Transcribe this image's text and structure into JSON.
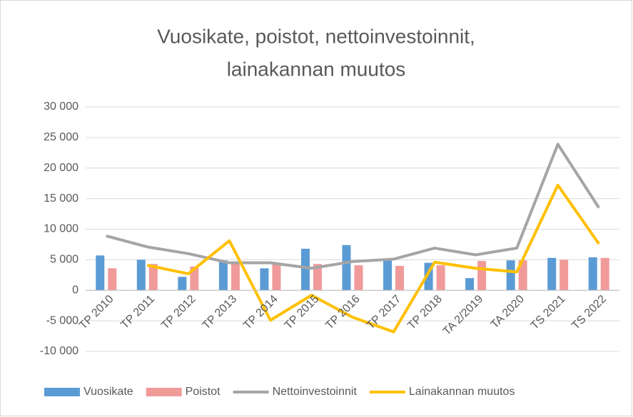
{
  "chart_data": {
    "type": "combo",
    "title": [
      "Vuosikate, poistot, nettoinvestoinnit,",
      "lainakannan muutos"
    ],
    "categories": [
      "TP 2010",
      "TP 2011",
      "TP 2012",
      "TP 2013",
      "TP 2014",
      "TP 2015",
      "TP 2016",
      "TP 2017",
      "TP 2018",
      "TA 2/2019",
      "TA 2020",
      "TS 2021",
      "TS 2022"
    ],
    "series": [
      {
        "name": "Vuosikate",
        "type": "bar",
        "color": "#5b9bd5",
        "values": [
          5700,
          5000,
          2200,
          4900,
          3600,
          6800,
          7400,
          4900,
          4500,
          2000,
          4900,
          5300,
          5400
        ]
      },
      {
        "name": "Poistot",
        "type": "bar",
        "color": "#f19a9a",
        "values": [
          3600,
          4300,
          3900,
          4300,
          4500,
          4300,
          4100,
          4000,
          4100,
          4800,
          4900,
          5000,
          5300
        ]
      },
      {
        "name": "Nettoinvestoinnit",
        "type": "line",
        "color": "#a5a5a5",
        "values": [
          8900,
          7100,
          6000,
          4500,
          4500,
          3600,
          4700,
          5100,
          6900,
          5800,
          6900,
          23900,
          13500
        ]
      },
      {
        "name": "Lainakannan muutos",
        "type": "line",
        "color": "#ffc000",
        "values": [
          null,
          4100,
          2700,
          8100,
          -4900,
          -800,
          -4400,
          -6800,
          4600,
          3600,
          3000,
          17200,
          7600
        ]
      }
    ],
    "ylim": [
      -10000,
      30000
    ],
    "yticks": [
      {
        "value": -10000,
        "label": "-10 000"
      },
      {
        "value": -5000,
        "label": "-5 000"
      },
      0,
      {
        "value": 5000,
        "label": "5 000"
      },
      {
        "value": 10000,
        "label": "10 000"
      },
      {
        "value": 15000,
        "label": "15 000"
      },
      {
        "value": 20000,
        "label": "20 000"
      },
      {
        "value": 25000,
        "label": "25 000"
      },
      {
        "value": 30000,
        "label": "30 000"
      }
    ],
    "grid": true,
    "legend": "bottom"
  }
}
